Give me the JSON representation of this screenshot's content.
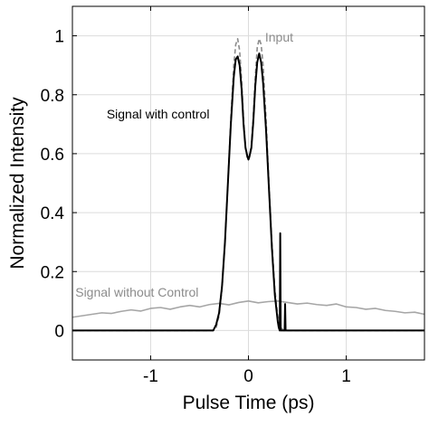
{
  "chart_data": {
    "type": "line",
    "title": "",
    "xlabel": "Pulse Time (ps)",
    "ylabel": "Normalized Intensity",
    "xlim": [
      -1.8,
      1.8
    ],
    "ylim": [
      -0.1,
      1.1
    ],
    "xticks": [
      -1,
      0,
      1
    ],
    "xtick_labels": [
      "-1",
      "0",
      "1"
    ],
    "yticks": [
      0,
      0.2,
      0.4,
      0.6,
      0.8,
      1
    ],
    "ytick_labels": [
      "0",
      "0.2",
      "0.4",
      "0.6",
      "0.8",
      "1"
    ],
    "grid": true,
    "series": [
      {
        "name": "Input",
        "color": "#8c8c8c",
        "style": "dashed",
        "x": [
          -1.8,
          -0.36,
          -0.33,
          -0.3,
          -0.27,
          -0.24,
          -0.21,
          -0.18,
          -0.15,
          -0.13,
          -0.11,
          -0.09,
          -0.07,
          -0.05,
          -0.03,
          -0.01,
          0,
          0.01,
          0.03,
          0.05,
          0.07,
          0.09,
          0.11,
          0.13,
          0.15,
          0.18,
          0.21,
          0.24,
          0.27,
          0.3,
          0.33,
          0.36,
          1.8
        ],
        "y": [
          0,
          0,
          0.01,
          0.05,
          0.14,
          0.3,
          0.5,
          0.72,
          0.9,
          0.97,
          0.99,
          0.95,
          0.85,
          0.72,
          0.62,
          0.58,
          0.58,
          0.59,
          0.63,
          0.73,
          0.86,
          0.96,
          0.99,
          0.97,
          0.9,
          0.72,
          0.5,
          0.3,
          0.14,
          0.05,
          0.01,
          0,
          0
        ]
      },
      {
        "name": "Signal with control",
        "color": "#000000",
        "style": "solid",
        "x": [
          -1.8,
          -0.36,
          -0.33,
          -0.3,
          -0.27,
          -0.24,
          -0.21,
          -0.18,
          -0.15,
          -0.13,
          -0.11,
          -0.09,
          -0.07,
          -0.05,
          -0.03,
          -0.01,
          0,
          0.01,
          0.03,
          0.05,
          0.07,
          0.09,
          0.11,
          0.13,
          0.15,
          0.18,
          0.21,
          0.24,
          0.27,
          0.3,
          0.31,
          0.32,
          0.325,
          0.33,
          0.34,
          0.35,
          0.36,
          0.37,
          0.375,
          0.38,
          0.39,
          0.4,
          1.8
        ],
        "y": [
          0,
          0,
          0.02,
          0.06,
          0.15,
          0.3,
          0.5,
          0.7,
          0.86,
          0.92,
          0.93,
          0.9,
          0.82,
          0.7,
          0.62,
          0.59,
          0.58,
          0.59,
          0.62,
          0.71,
          0.83,
          0.91,
          0.94,
          0.91,
          0.84,
          0.68,
          0.48,
          0.28,
          0.12,
          0.03,
          0.01,
          0,
          0.33,
          0,
          0,
          0,
          0,
          0,
          0.09,
          0,
          0,
          0,
          0
        ]
      },
      {
        "name": "Signal without Control",
        "color": "#a6a6a6",
        "style": "solid",
        "x": [
          -1.8,
          -1.7,
          -1.6,
          -1.5,
          -1.4,
          -1.3,
          -1.2,
          -1.1,
          -1.0,
          -0.9,
          -0.8,
          -0.7,
          -0.6,
          -0.5,
          -0.4,
          -0.3,
          -0.2,
          -0.1,
          0.0,
          0.1,
          0.2,
          0.3,
          0.4,
          0.5,
          0.6,
          0.7,
          0.8,
          0.9,
          1.0,
          1.1,
          1.2,
          1.3,
          1.4,
          1.5,
          1.6,
          1.7,
          1.8
        ],
        "y": [
          0.045,
          0.05,
          0.055,
          0.06,
          0.058,
          0.065,
          0.07,
          0.066,
          0.075,
          0.078,
          0.072,
          0.08,
          0.085,
          0.08,
          0.088,
          0.092,
          0.087,
          0.095,
          0.1,
          0.094,
          0.098,
          0.1,
          0.095,
          0.09,
          0.093,
          0.088,
          0.085,
          0.09,
          0.08,
          0.078,
          0.072,
          0.075,
          0.068,
          0.065,
          0.06,
          0.062,
          0.055
        ]
      }
    ],
    "annotations": [
      {
        "text": "Input",
        "x": 0.17,
        "y": 0.98,
        "color": "#8c8c8c"
      },
      {
        "text": "Signal with control",
        "x": -1.45,
        "y": 0.72,
        "color": "#000000"
      },
      {
        "text": "Signal without Control",
        "x": -1.77,
        "y": 0.115,
        "color": "#8c8c8c"
      }
    ]
  }
}
